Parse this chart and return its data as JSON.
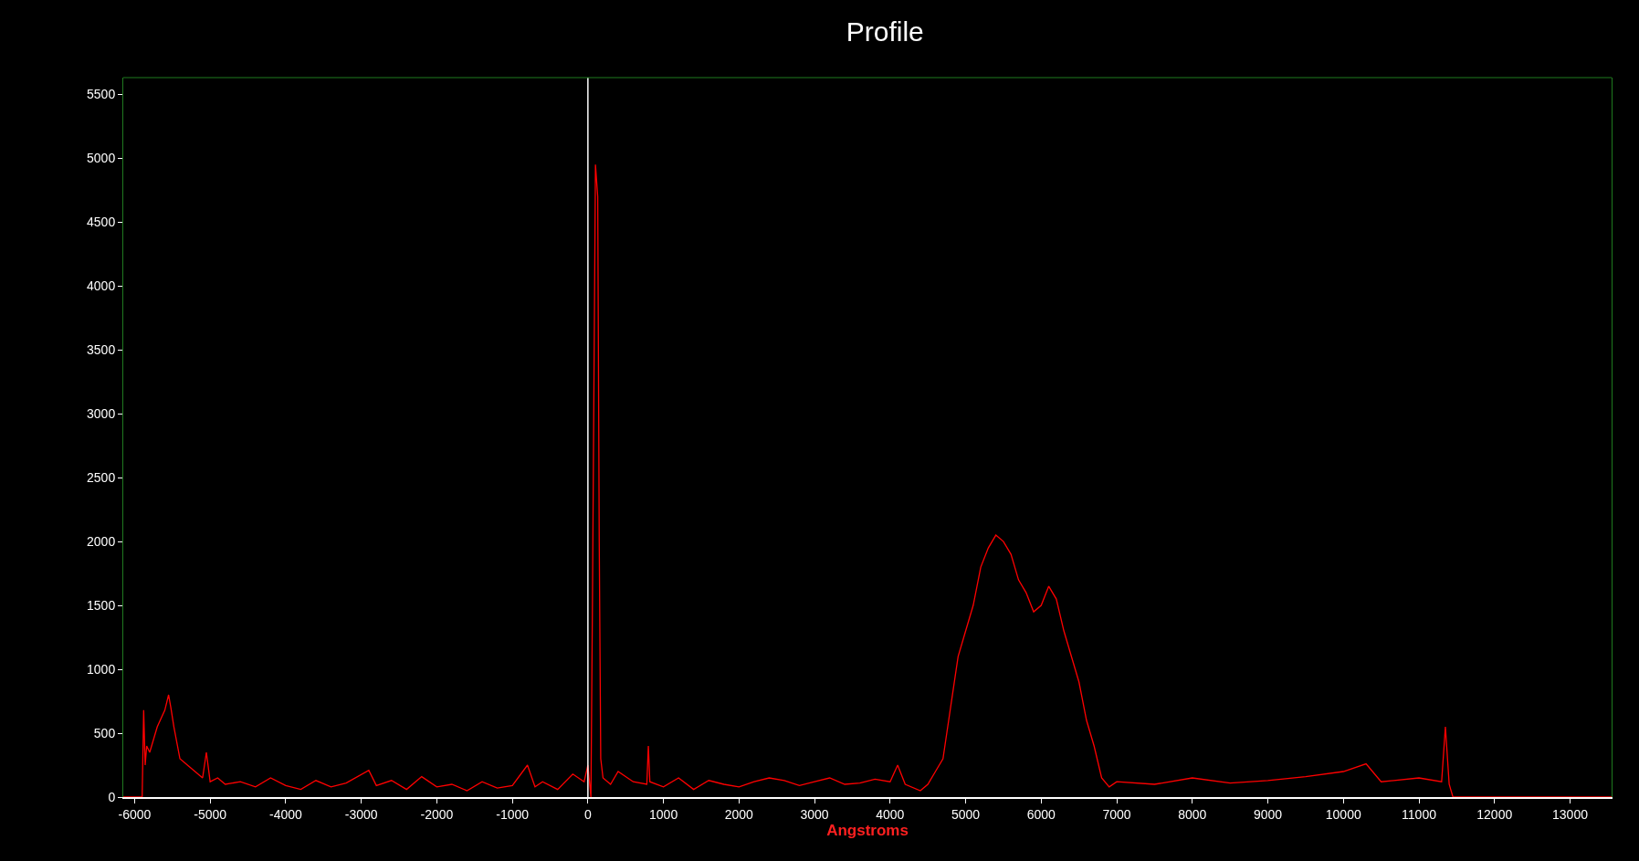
{
  "chart_data": {
    "type": "line",
    "title": "Profile",
    "xlabel": "Angstroms",
    "xlim": [
      -6150,
      13550
    ],
    "ylim": [
      0,
      5630
    ],
    "xticks": [
      -6000,
      -5000,
      -4000,
      -3000,
      -2000,
      -1000,
      0,
      1000,
      2000,
      3000,
      4000,
      5000,
      6000,
      7000,
      8000,
      9000,
      10000,
      11000,
      12000,
      13000
    ],
    "yticks": [
      0,
      500,
      1000,
      1500,
      2000,
      2500,
      3000,
      3500,
      4000,
      4500,
      5000,
      5500
    ],
    "grid": false,
    "legend": false,
    "marker": "none",
    "line_style": "solid",
    "ref_lines": [
      {
        "axis": "x",
        "value": 0,
        "color": "#ffffff"
      }
    ],
    "series": [
      {
        "color": "#ff0000",
        "x": [
          -6150,
          -5900,
          -5880,
          -5860,
          -5840,
          -5800,
          -5700,
          -5600,
          -5550,
          -5520,
          -5480,
          -5400,
          -5300,
          -5200,
          -5100,
          -5050,
          -5000,
          -4900,
          -4800,
          -4600,
          -4400,
          -4200,
          -4000,
          -3800,
          -3600,
          -3400,
          -3200,
          -2900,
          -2800,
          -2600,
          -2400,
          -2200,
          -2000,
          -1800,
          -1600,
          -1400,
          -1200,
          -1000,
          -800,
          -700,
          -600,
          -400,
          -200,
          -50,
          0,
          40,
          60,
          100,
          130,
          150,
          170,
          200,
          300,
          400,
          600,
          780,
          800,
          820,
          1000,
          1200,
          1400,
          1600,
          1800,
          2000,
          2200,
          2400,
          2600,
          2800,
          3000,
          3200,
          3400,
          3600,
          3800,
          4000,
          4100,
          4200,
          4400,
          4500,
          4600,
          4700,
          4800,
          4900,
          5000,
          5100,
          5200,
          5300,
          5400,
          5500,
          5600,
          5700,
          5800,
          5900,
          6000,
          6100,
          6200,
          6300,
          6400,
          6500,
          6600,
          6700,
          6800,
          6900,
          7000,
          7500,
          8000,
          8500,
          9000,
          9500,
          10000,
          10300,
          10500,
          11000,
          11300,
          11350,
          11400,
          11450,
          12000,
          13550
        ],
        "values": [
          0,
          0,
          680,
          250,
          400,
          350,
          550,
          680,
          800,
          700,
          550,
          300,
          250,
          200,
          150,
          350,
          120,
          150,
          100,
          120,
          80,
          150,
          90,
          60,
          130,
          80,
          110,
          210,
          90,
          130,
          60,
          160,
          80,
          100,
          50,
          120,
          70,
          90,
          250,
          80,
          120,
          60,
          180,
          120,
          250,
          0,
          1500,
          4950,
          4700,
          2000,
          300,
          150,
          100,
          200,
          120,
          100,
          400,
          120,
          80,
          150,
          60,
          130,
          100,
          80,
          120,
          150,
          130,
          90,
          120,
          150,
          100,
          110,
          140,
          120,
          250,
          100,
          50,
          100,
          200,
          300,
          700,
          1100,
          1300,
          1500,
          1800,
          1950,
          2050,
          2000,
          1900,
          1700,
          1600,
          1450,
          1500,
          1650,
          1550,
          1300,
          1100,
          900,
          600,
          400,
          150,
          80,
          120,
          100,
          150,
          110,
          130,
          160,
          200,
          260,
          120,
          150,
          120,
          550,
          100,
          0,
          0,
          0
        ]
      }
    ]
  }
}
